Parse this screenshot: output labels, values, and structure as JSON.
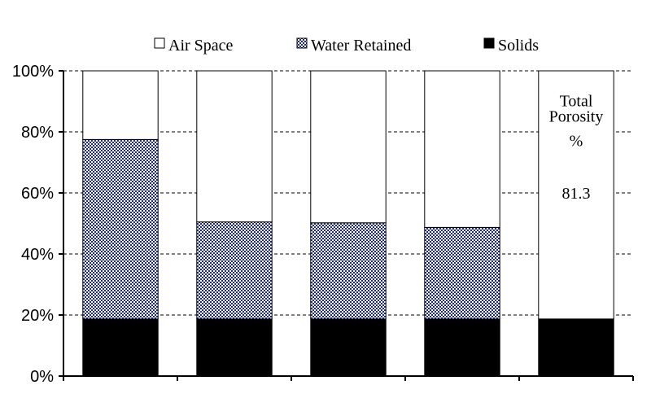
{
  "chart_data": {
    "type": "bar",
    "stacked": true,
    "categories": [
      "",
      "",
      "",
      "",
      ""
    ],
    "series": [
      {
        "name": "Solids",
        "values": [
          18.7,
          18.7,
          18.7,
          18.7,
          18.7
        ],
        "color": "#000000",
        "fill": "solid"
      },
      {
        "name": "Water Retained",
        "values": [
          58.8,
          31.8,
          31.5,
          30.0,
          0
        ],
        "color": "#1a2a8a",
        "fill": "checker"
      },
      {
        "name": "Air Space",
        "values": [
          22.5,
          49.5,
          49.8,
          51.3,
          81.3
        ],
        "color": "#ffffff",
        "fill": "solid"
      }
    ],
    "legend": [
      "Air Space",
      "Water Retained",
      "Solids"
    ],
    "legend_placement": "top",
    "ylim": [
      0,
      100
    ],
    "yticks": [
      "0%",
      "20%",
      "40%",
      "60%",
      "80%",
      "100%"
    ],
    "ytick_values": [
      0,
      20,
      40,
      60,
      80,
      100
    ],
    "grid": true,
    "annotation": {
      "lines": [
        "Total",
        "Porosity",
        "%"
      ],
      "value": "81.3",
      "bar_index": 4
    }
  }
}
